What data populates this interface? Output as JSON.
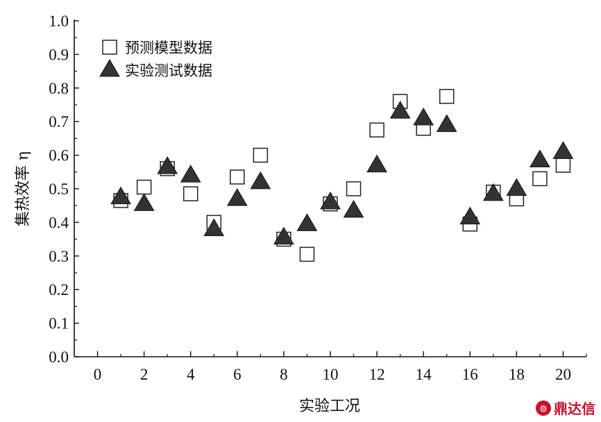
{
  "chart_data": {
    "type": "scatter",
    "title": "",
    "xlabel": "实验工况",
    "ylabel": "集热效率 η",
    "xlim": [
      -1,
      21
    ],
    "ylim": [
      0.0,
      1.0
    ],
    "xticks": [
      "0",
      "2",
      "4",
      "6",
      "8",
      "10",
      "12",
      "14",
      "16",
      "18",
      "20"
    ],
    "yticks": [
      "0.0",
      "0.1",
      "0.2",
      "0.3",
      "0.4",
      "0.5",
      "0.6",
      "0.7",
      "0.8",
      "0.9",
      "1.0"
    ],
    "legend_position": "top-left",
    "series": [
      {
        "name": "预测模型数据",
        "marker": "open-square",
        "x": [
          1,
          2,
          3,
          4,
          5,
          6,
          7,
          8,
          9,
          10,
          11,
          12,
          13,
          14,
          15,
          16,
          17,
          18,
          19,
          20
        ],
        "y": [
          0.465,
          0.505,
          0.56,
          0.485,
          0.4,
          0.535,
          0.6,
          0.35,
          0.305,
          0.455,
          0.5,
          0.675,
          0.76,
          0.68,
          0.775,
          0.395,
          0.49,
          0.47,
          0.53,
          0.57
        ]
      },
      {
        "name": "实验测试数据",
        "marker": "filled-triangle",
        "x": [
          1,
          2,
          3,
          4,
          5,
          6,
          7,
          8,
          9,
          10,
          11,
          12,
          13,
          14,
          15,
          16,
          17,
          18,
          19,
          20
        ],
        "y": [
          0.48,
          0.46,
          0.57,
          0.545,
          0.385,
          0.475,
          0.525,
          0.36,
          0.4,
          0.465,
          0.44,
          0.575,
          0.735,
          0.715,
          0.695,
          0.42,
          0.49,
          0.505,
          0.59,
          0.615
        ]
      }
    ]
  },
  "watermark": {
    "text": "鼎达信",
    "icon": "logo-icon",
    "color": "#c8102e"
  }
}
